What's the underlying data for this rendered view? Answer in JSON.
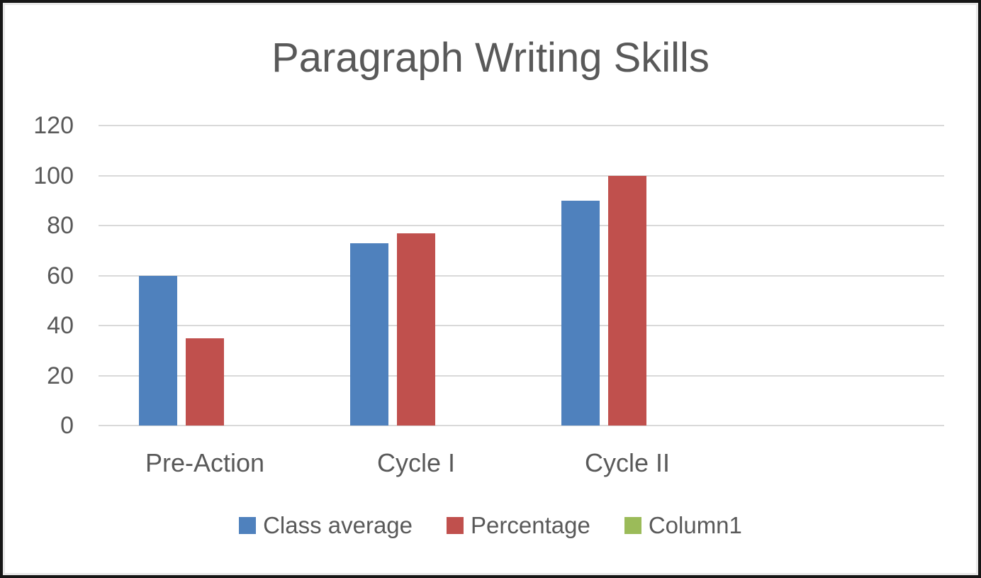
{
  "frame": {
    "background": "#ffffff",
    "border_color": "#161616",
    "inner_edge_color": "#e8e8e8"
  },
  "chart_data": {
    "type": "bar",
    "title": "Paragraph Writing Skills",
    "categories": [
      "Pre-Action",
      "Cycle I",
      "Cycle II"
    ],
    "series": [
      {
        "name": "Class average",
        "color": "#4F81BD",
        "values": [
          60,
          73,
          90
        ]
      },
      {
        "name": "Percentage",
        "color": "#C0504D",
        "values": [
          35,
          77,
          100
        ]
      },
      {
        "name": "Column1",
        "color": "#9BBB59",
        "values": [
          0,
          0,
          0
        ]
      }
    ],
    "xlabel": "",
    "ylabel": "",
    "ylim": [
      0,
      120
    ],
    "ytick_step": 20,
    "ytick_labels": [
      "0",
      "20",
      "40",
      "60",
      "80",
      "100",
      "120"
    ],
    "grid": true,
    "gridline_color": "#d9d9d9",
    "text_color": "#595959",
    "legend_position": "bottom"
  }
}
